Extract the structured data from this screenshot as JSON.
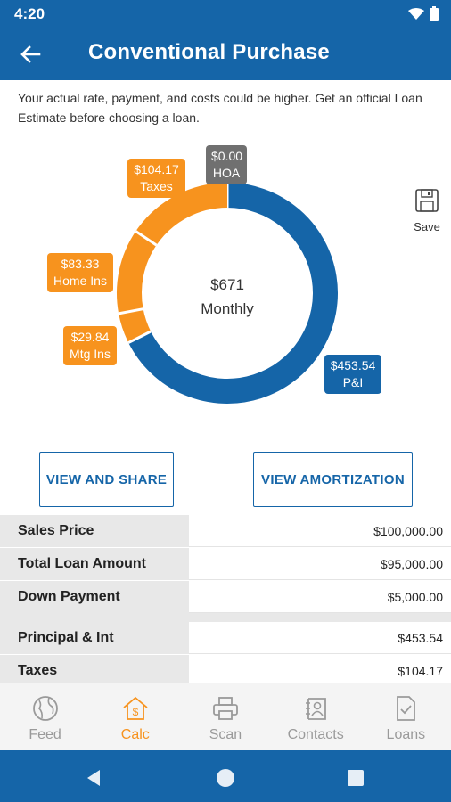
{
  "status": {
    "time": "4:20"
  },
  "appbar": {
    "title": "Conventional Purchase"
  },
  "disclaimer": "Your actual rate, payment, and costs could be higher. Get an official Loan Estimate before choosing a loan.",
  "chart_data": {
    "type": "pie",
    "center_value": "$671",
    "center_label": "Monthly",
    "slices": [
      {
        "label": "P&I",
        "value": 453.54,
        "value_text": "$453.54",
        "color": "#1565a8"
      },
      {
        "label": "Mtg Ins",
        "value": 29.84,
        "value_text": "$29.84",
        "color": "#f7931e"
      },
      {
        "label": "Home Ins",
        "value": 83.33,
        "value_text": "$83.33",
        "color": "#f7931e"
      },
      {
        "label": "Taxes",
        "value": 104.17,
        "value_text": "$104.17",
        "color": "#f7931e"
      },
      {
        "label": "HOA",
        "value": 0.0,
        "value_text": "$0.00",
        "color": "#707070"
      }
    ]
  },
  "save": {
    "label": "Save"
  },
  "buttons": {
    "view_share": "VIEW AND SHARE",
    "view_amortization": "VIEW AMORTIZATION"
  },
  "summary": [
    {
      "label": "Sales Price",
      "value": "$100,000.00"
    },
    {
      "label": "Total Loan Amount",
      "value": "$95,000.00"
    },
    {
      "label": "Down Payment",
      "value": "$5,000.00"
    }
  ],
  "payments": [
    {
      "label": "Principal & Int",
      "value": "$453.54"
    },
    {
      "label": "Taxes",
      "value": "$104.17"
    }
  ],
  "nav": [
    {
      "label": "Feed",
      "icon": "globe-icon",
      "active": false
    },
    {
      "label": "Calc",
      "icon": "house-dollar-icon",
      "active": true
    },
    {
      "label": "Scan",
      "icon": "printer-icon",
      "active": false
    },
    {
      "label": "Contacts",
      "icon": "contacts-icon",
      "active": false
    },
    {
      "label": "Loans",
      "icon": "document-check-icon",
      "active": false
    }
  ],
  "colors": {
    "primary": "#1565a8",
    "accent": "#f7931e",
    "neutral": "#707070"
  }
}
